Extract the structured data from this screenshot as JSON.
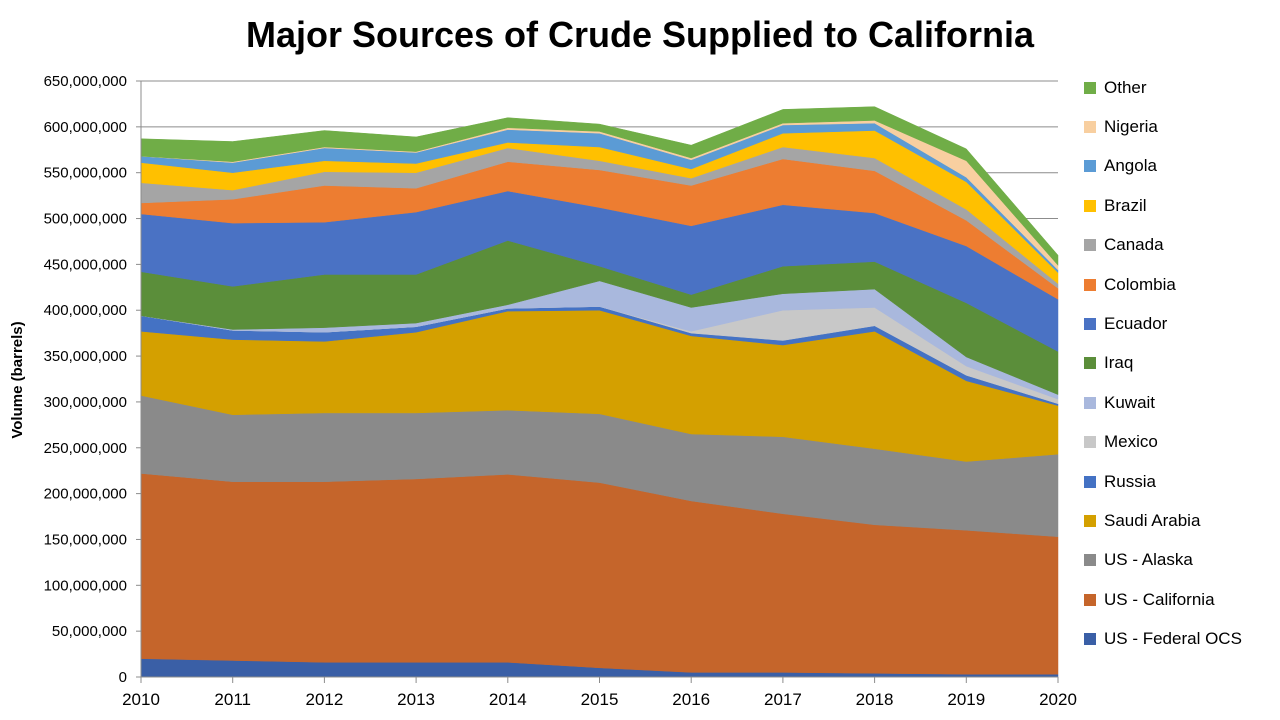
{
  "chart_data": {
    "type": "area",
    "stacked": true,
    "title": "Major Sources of Crude Supplied to California",
    "xlabel": "",
    "ylabel": "Volume (barrels)",
    "ylim": [
      0,
      650000000
    ],
    "ytick_labels": [
      "0",
      "50,000,000",
      "100,000,000",
      "150,000,000",
      "200,000,000",
      "250,000,000",
      "300,000,000",
      "350,000,000",
      "400,000,000",
      "450,000,000",
      "500,000,000",
      "550,000,000",
      "600,000,000",
      "650,000,000"
    ],
    "x": [
      "2010",
      "2011",
      "2012",
      "2013",
      "2014",
      "2015",
      "2016",
      "2017",
      "2018",
      "2019",
      "2020"
    ],
    "grid": "horizontal",
    "legend_position": "right",
    "series": [
      {
        "name": "US - Federal OCS",
        "color": "#3A5FA6",
        "values": [
          20000000,
          18000000,
          16000000,
          16000000,
          16000000,
          10000000,
          5000000,
          5000000,
          4000000,
          3000000,
          3000000
        ]
      },
      {
        "name": "US - California",
        "color": "#C5652B",
        "values": [
          202000000,
          195000000,
          197000000,
          200000000,
          205000000,
          202000000,
          187000000,
          173000000,
          162000000,
          157000000,
          150000000
        ]
      },
      {
        "name": "US - Alaska",
        "color": "#8A8A8A",
        "values": [
          85000000,
          73000000,
          75000000,
          72000000,
          70000000,
          75000000,
          73000000,
          84000000,
          83000000,
          75000000,
          90000000
        ]
      },
      {
        "name": "Saudi Arabia",
        "color": "#D4A000",
        "values": [
          70000000,
          82000000,
          78000000,
          88000000,
          108000000,
          113000000,
          107000000,
          100000000,
          128000000,
          88000000,
          53000000
        ]
      },
      {
        "name": "Russia",
        "color": "#4472C4",
        "values": [
          17000000,
          10000000,
          10000000,
          6000000,
          3000000,
          4000000,
          3000000,
          5000000,
          6000000,
          6000000,
          2000000
        ]
      },
      {
        "name": "Mexico",
        "color": "#C8C8C8",
        "values": [
          0,
          0,
          0,
          0,
          0,
          0,
          2000000,
          33000000,
          20000000,
          10000000,
          5000000
        ]
      },
      {
        "name": "Kuwait",
        "color": "#A9B8DD",
        "values": [
          0,
          1000000,
          5000000,
          4000000,
          4000000,
          28000000,
          26000000,
          18000000,
          20000000,
          10000000,
          5000000
        ]
      },
      {
        "name": "Iraq",
        "color": "#5B8E3A",
        "values": [
          48000000,
          47000000,
          58000000,
          53000000,
          70000000,
          16000000,
          14000000,
          30000000,
          30000000,
          59000000,
          47000000
        ]
      },
      {
        "name": "Ecuador",
        "color": "#4A72C4",
        "values": [
          63000000,
          69000000,
          57000000,
          68000000,
          54000000,
          64000000,
          75000000,
          67000000,
          53000000,
          62000000,
          57000000
        ]
      },
      {
        "name": "Colombia",
        "color": "#ED7D31",
        "values": [
          12000000,
          26000000,
          40000000,
          26000000,
          32000000,
          41000000,
          44000000,
          50000000,
          46000000,
          28000000,
          12000000
        ]
      },
      {
        "name": "Canada",
        "color": "#A5A5A5",
        "values": [
          22000000,
          10000000,
          15000000,
          17000000,
          15000000,
          10000000,
          8000000,
          13000000,
          14000000,
          12000000,
          5000000
        ]
      },
      {
        "name": "Brazil",
        "color": "#FFC000",
        "values": [
          22000000,
          19000000,
          12000000,
          10000000,
          6000000,
          15000000,
          10000000,
          15000000,
          30000000,
          30000000,
          12000000
        ]
      },
      {
        "name": "Angola",
        "color": "#5B9BD5",
        "values": [
          7000000,
          11000000,
          14000000,
          12000000,
          14000000,
          15000000,
          10000000,
          9000000,
          8000000,
          5000000,
          3000000
        ]
      },
      {
        "name": "Nigeria",
        "color": "#F8CFA0",
        "values": [
          0,
          1000000,
          1000000,
          1000000,
          2000000,
          2000000,
          2000000,
          2000000,
          3000000,
          18000000,
          5000000
        ]
      },
      {
        "name": "Other",
        "color": "#70AD47",
        "values": [
          19000000,
          22000000,
          18000000,
          16000000,
          11000000,
          8000000,
          14000000,
          15000000,
          15000000,
          13000000,
          11000000
        ]
      }
    ]
  }
}
